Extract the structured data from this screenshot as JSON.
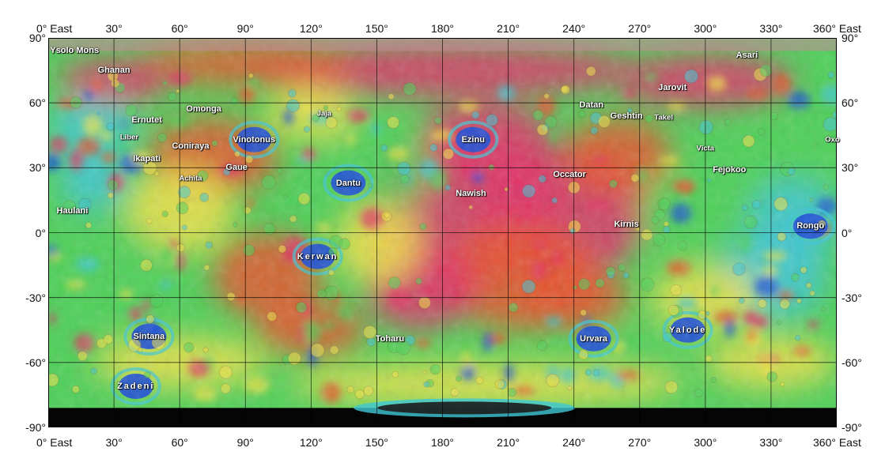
{
  "map": {
    "grid": true,
    "colors": {
      "low": "#1e4fd8",
      "mid_low": "#3fc7d6",
      "mid": "#4fd05a",
      "mid_high": "#f0e24a",
      "high": "#e8552e",
      "highest": "#e2336a",
      "no_data": "#050505"
    },
    "lon_labels_top": [
      {
        "lon": 0,
        "text": "0° East"
      },
      {
        "lon": 30,
        "text": "30°"
      },
      {
        "lon": 60,
        "text": "60°"
      },
      {
        "lon": 90,
        "text": "90°"
      },
      {
        "lon": 120,
        "text": "120°"
      },
      {
        "lon": 150,
        "text": "150°"
      },
      {
        "lon": 180,
        "text": "180°"
      },
      {
        "lon": 210,
        "text": "210°"
      },
      {
        "lon": 240,
        "text": "240°"
      },
      {
        "lon": 270,
        "text": "270°"
      },
      {
        "lon": 300,
        "text": "300°"
      },
      {
        "lon": 330,
        "text": "330°"
      },
      {
        "lon": 360,
        "text": "360° East"
      }
    ],
    "lon_labels_bottom": [
      {
        "lon": 0,
        "text": "0° East"
      },
      {
        "lon": 30,
        "text": "30°"
      },
      {
        "lon": 60,
        "text": "60°"
      },
      {
        "lon": 90,
        "text": "90°"
      },
      {
        "lon": 120,
        "text": "120°"
      },
      {
        "lon": 150,
        "text": "150°"
      },
      {
        "lon": 180,
        "text": "180°"
      },
      {
        "lon": 210,
        "text": "210°"
      },
      {
        "lon": 240,
        "text": "240°"
      },
      {
        "lon": 270,
        "text": "270°"
      },
      {
        "lon": 300,
        "text": "300°"
      },
      {
        "lon": 330,
        "text": "330°"
      },
      {
        "lon": 360,
        "text": "360° East"
      }
    ],
    "lat_labels": [
      {
        "lat": 90,
        "text": "90°"
      },
      {
        "lat": 60,
        "text": "60°"
      },
      {
        "lat": 30,
        "text": "30°"
      },
      {
        "lat": 0,
        "text": "0°"
      },
      {
        "lat": -30,
        "text": "-30°"
      },
      {
        "lat": -60,
        "text": "-60°"
      },
      {
        "lat": -90,
        "text": "-90°"
      }
    ],
    "features": [
      {
        "name": "Ysolo Mons",
        "lon": 12,
        "lat": 84,
        "low": false
      },
      {
        "name": "Ghanan",
        "lon": 30,
        "lat": 75,
        "low": false
      },
      {
        "name": "Omonga",
        "lon": 71,
        "lat": 57,
        "low": false
      },
      {
        "name": "Ernutet",
        "lon": 45,
        "lat": 52,
        "low": false
      },
      {
        "name": "Liber",
        "lon": 37,
        "lat": 44,
        "low": false
      },
      {
        "name": "Coniraya",
        "lon": 65,
        "lat": 40,
        "low": false
      },
      {
        "name": "Vinotonus",
        "lon": 94,
        "lat": 43,
        "low": true
      },
      {
        "name": "Jaja",
        "lon": 126,
        "lat": 55,
        "low": false
      },
      {
        "name": "Ikapati",
        "lon": 45,
        "lat": 34,
        "low": false
      },
      {
        "name": "Gaue",
        "lon": 86,
        "lat": 30,
        "low": false
      },
      {
        "name": "Achita",
        "lon": 65,
        "lat": 25,
        "low": false
      },
      {
        "name": "Dantu",
        "lon": 137,
        "lat": 23,
        "low": true
      },
      {
        "name": "Ezinu",
        "lon": 194,
        "lat": 43,
        "low": true
      },
      {
        "name": "Nawish",
        "lon": 193,
        "lat": 18,
        "low": false
      },
      {
        "name": "Occator",
        "lon": 238,
        "lat": 27,
        "low": false
      },
      {
        "name": "Datan",
        "lon": 248,
        "lat": 59,
        "low": false
      },
      {
        "name": "Geshtin",
        "lon": 264,
        "lat": 54,
        "low": false
      },
      {
        "name": "Takel",
        "lon": 281,
        "lat": 53,
        "low": false
      },
      {
        "name": "Jarovit",
        "lon": 285,
        "lat": 67,
        "low": false
      },
      {
        "name": "Victa",
        "lon": 300,
        "lat": 39,
        "low": false
      },
      {
        "name": "Fejokoo",
        "lon": 311,
        "lat": 29,
        "low": false
      },
      {
        "name": "Oxo",
        "lon": 358,
        "lat": 43,
        "low": false
      },
      {
        "name": "Asari",
        "lon": 319,
        "lat": 82,
        "low": false
      },
      {
        "name": "Haulani",
        "lon": 11,
        "lat": 10,
        "low": false
      },
      {
        "name": "Kirnis",
        "lon": 264,
        "lat": 4,
        "low": false
      },
      {
        "name": "Rongo",
        "lon": 348,
        "lat": 3,
        "low": true
      },
      {
        "name": "Kerwan",
        "lon": 123,
        "lat": -11,
        "low": true
      },
      {
        "name": "Sintana",
        "lon": 46,
        "lat": -48,
        "low": true
      },
      {
        "name": "Toharu",
        "lon": 156,
        "lat": -49,
        "low": false
      },
      {
        "name": "Urvara",
        "lon": 249,
        "lat": -49,
        "low": true
      },
      {
        "name": "Yalode",
        "lon": 292,
        "lat": -45,
        "low": true
      },
      {
        "name": "Zadeni",
        "lon": 40,
        "lat": -71,
        "low": true
      }
    ]
  }
}
